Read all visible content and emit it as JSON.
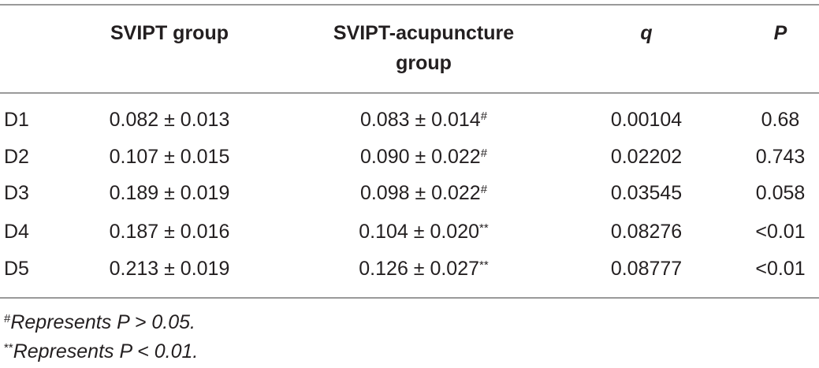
{
  "table": {
    "header": [
      "SVIPT group",
      "SVIPT-acupuncture group",
      "q",
      "P"
    ],
    "rows": [
      {
        "label": "D1",
        "svipt": "0.082 ± 0.013",
        "acu": "0.083 ± 0.014",
        "acu_mark": "#",
        "q": "0.00104",
        "p": "0.68"
      },
      {
        "label": "D2",
        "svipt": "0.107 ± 0.015",
        "acu": "0.090 ± 0.022",
        "acu_mark": "#",
        "q": "0.02202",
        "p": "0.743"
      },
      {
        "label": "D3",
        "svipt": "0.189 ± 0.019",
        "acu": "0.098 ± 0.022",
        "acu_mark": "#",
        "q": "0.03545",
        "p": "0.058"
      },
      {
        "label": "D4",
        "svipt": "0.187 ± 0.016",
        "acu": "0.104 ± 0.020",
        "acu_mark": "**",
        "q": "0.08276",
        "p": "<0.01"
      },
      {
        "label": "D5",
        "svipt": "0.213 ± 0.019",
        "acu": "0.126 ± 0.027",
        "acu_mark": "**",
        "q": "0.08777",
        "p": "<0.01"
      }
    ],
    "footnotes": [
      {
        "mark": "#",
        "text": "Represents P > 0.05."
      },
      {
        "mark": "**",
        "text": "Represents P < 0.01."
      }
    ]
  }
}
